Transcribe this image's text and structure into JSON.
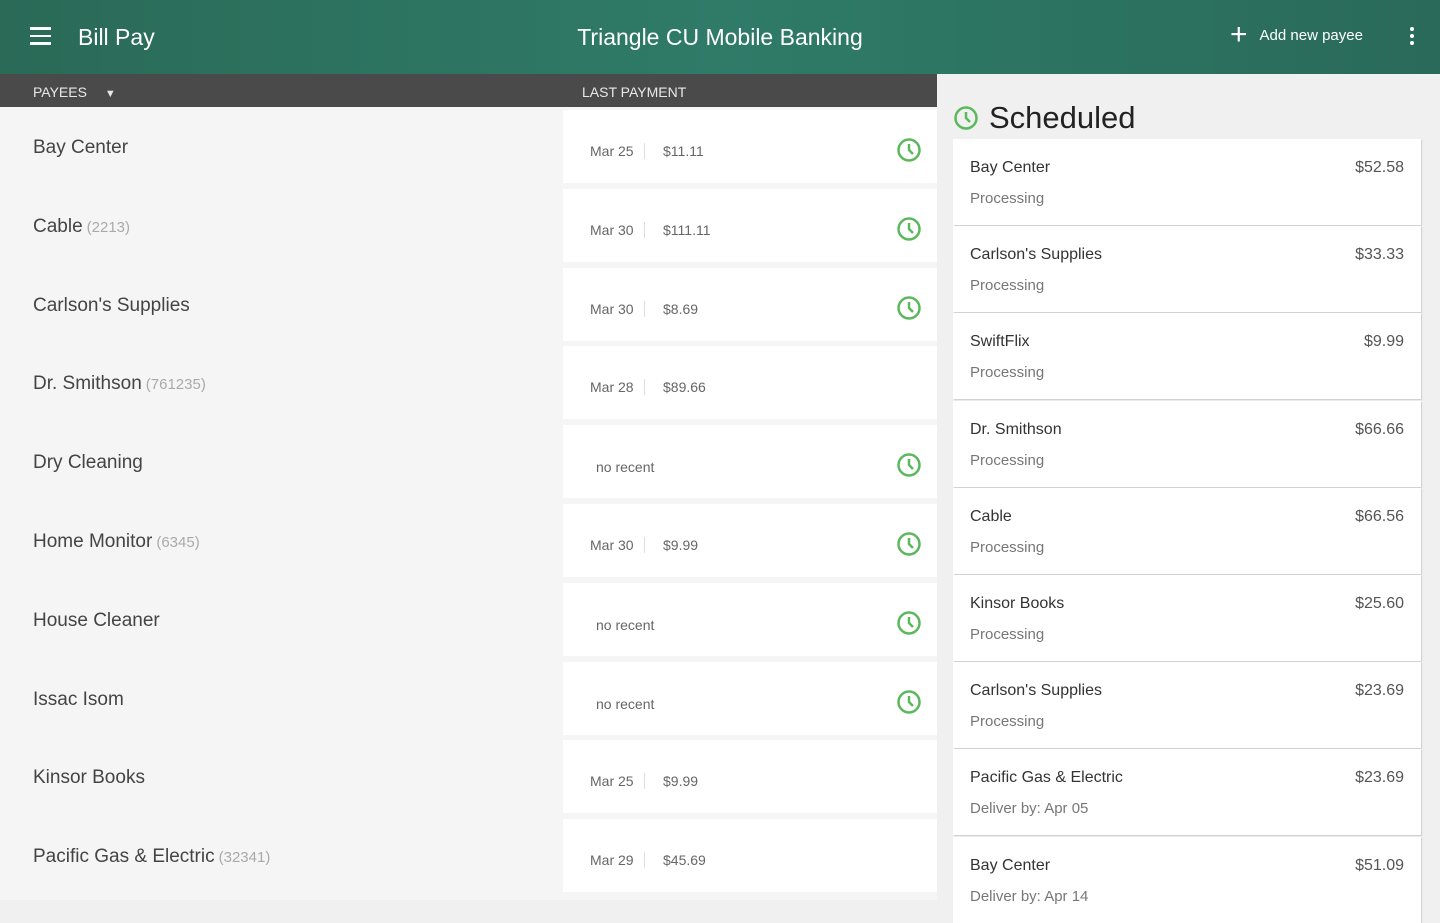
{
  "appbar": {
    "section": "Bill Pay",
    "title": "Triangle CU Mobile Banking",
    "add_label": "Add new payee"
  },
  "columns": {
    "payees": "PAYEES",
    "last_payment": "LAST PAYMENT"
  },
  "accent": "#5cb85c",
  "payees": [
    {
      "name": "Bay Center",
      "account": "",
      "date": "Mar 25",
      "amount": "$11.11",
      "scheduled": true
    },
    {
      "name": "Cable",
      "account": "(2213)",
      "date": "Mar 30",
      "amount": "$111.11",
      "scheduled": true
    },
    {
      "name": "Carlson's Supplies",
      "account": "",
      "date": "Mar 30",
      "amount": "$8.69",
      "scheduled": true
    },
    {
      "name": "Dr. Smithson",
      "account": "(761235)",
      "date": "Mar 28",
      "amount": "$89.66",
      "scheduled": false
    },
    {
      "name": "Dry Cleaning",
      "account": "",
      "no_recent": "no recent",
      "scheduled": true
    },
    {
      "name": "Home Monitor",
      "account": "(6345)",
      "date": "Mar 30",
      "amount": "$9.99",
      "scheduled": true
    },
    {
      "name": "House Cleaner",
      "account": "",
      "no_recent": "no recent",
      "scheduled": true
    },
    {
      "name": "Issac Isom",
      "account": "",
      "no_recent": "no recent",
      "scheduled": true
    },
    {
      "name": "Kinsor Books",
      "account": "",
      "date": "Mar 25",
      "amount": "$9.99",
      "scheduled": false
    },
    {
      "name": "Pacific Gas & Electric",
      "account": "(32341)",
      "date": "Mar 29",
      "amount": "$45.69",
      "scheduled": false
    }
  ],
  "scheduled": {
    "title": "Scheduled",
    "items": [
      {
        "name": "Bay Center",
        "amount": "$52.58",
        "status": "Processing"
      },
      {
        "name": "Carlson's Supplies",
        "amount": "$33.33",
        "status": "Processing"
      },
      {
        "name": "SwiftFlix",
        "amount": "$9.99",
        "status": "Processing"
      },
      {
        "name": "Dr. Smithson",
        "amount": "$66.66",
        "status": "Processing"
      },
      {
        "name": "Cable",
        "amount": "$66.56",
        "status": "Processing"
      },
      {
        "name": "Kinsor Books",
        "amount": "$25.60",
        "status": "Processing"
      },
      {
        "name": "Carlson's Supplies",
        "amount": "$23.69",
        "status": "Processing"
      },
      {
        "name": "Pacific Gas & Electric",
        "amount": "$23.69",
        "status": "Deliver by: Apr 05"
      },
      {
        "name": "Bay Center",
        "amount": "$51.09",
        "status": "Deliver by: Apr 14"
      }
    ]
  }
}
